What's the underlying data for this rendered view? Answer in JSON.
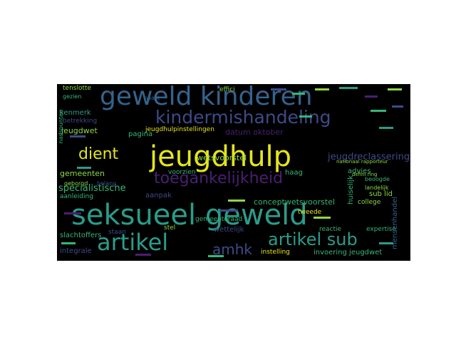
{
  "palette": {
    "background": "#000000",
    "page": "#ffffff",
    "yellow": "#e4e51a",
    "teal": "#2a9c8a",
    "purple": "#4a1f72",
    "indigo": "#3e4a89",
    "blue": "#33638d",
    "green": "#35b779",
    "lime": "#8fd744"
  },
  "words": {
    "w1": "jeugdhulp",
    "w2": "seksueel geweld",
    "w3": "geweld kinderen",
    "w4": "kindermishandeling",
    "w5": "toegankelijkheid",
    "w6": "artikel",
    "w7": "artikel sub",
    "w8": "dient",
    "w9": "amhk",
    "w10": "jeugdreclassering",
    "w11": "datum oktober",
    "w12": "jeugdhulpinstellingen",
    "w13": "wetsvoorstel",
    "w14": "specialistische",
    "w15": "gemeenten",
    "w16": "pagina",
    "w17": "jeugdwet",
    "w18": "betrekking",
    "w19": "kenmerk",
    "w20": "effici",
    "w21": "advies",
    "w22": "beoogde",
    "w23": "landelijk",
    "w24": "huiselijk",
    "w25": "sub lid",
    "w26": "college",
    "w27": "conceptwetsvoorstel",
    "w28": "tweede",
    "w29": "gemeenteraad",
    "w30": "aanpak",
    "w31": "voorzien",
    "w32": "haag",
    "w33": "aanleiding",
    "w34": "slachtoffers",
    "w35": "integrale",
    "w36": "staan",
    "w37": "stel",
    "w38": "wettelijk",
    "w39": "reactie",
    "w40": "expertise",
    "w41": "instelling",
    "w42": "invoering jeugdwet",
    "w43": "mensenhandel",
    "w44": "geborgd",
    "w45": "belang",
    "w46": "tenslotte",
    "w47": "gezien",
    "w48": "nadspunten",
    "w49": "defini ring",
    "w50": "nationaal rapporteur",
    "w51": "naast"
  }
}
